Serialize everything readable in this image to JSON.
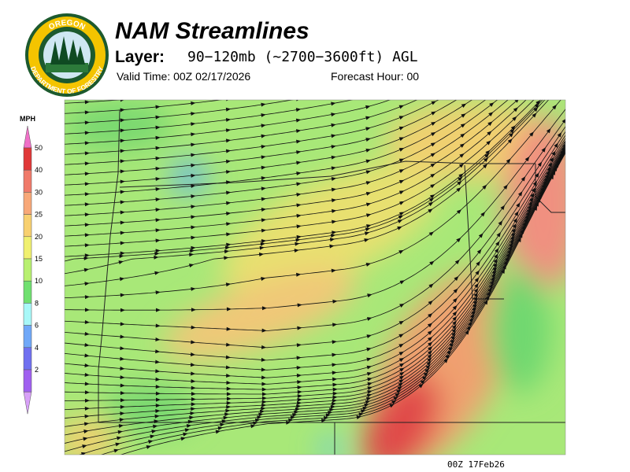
{
  "logo": {
    "top_text": "OREGON",
    "bottom_text": "DEPARTMENT OF FORESTRY"
  },
  "header": {
    "title": "NAM Streamlines",
    "layer_label": "Layer:",
    "layer_value": "90−120mb (~2700−3600ft) AGL",
    "valid_time": "Valid Time: 00Z 02/17/2026",
    "forecast_hour": "Forecast Hour: 00"
  },
  "legend": {
    "unit": "MPH",
    "levels": [
      {
        "label": "50",
        "color": "#e03838"
      },
      {
        "label": "40",
        "color": "#f07a6a"
      },
      {
        "label": "30",
        "color": "#f8a878"
      },
      {
        "label": "25",
        "color": "#f8d070"
      },
      {
        "label": "20",
        "color": "#f0f070"
      },
      {
        "label": "15",
        "color": "#b8f070"
      },
      {
        "label": "10",
        "color": "#70e070"
      },
      {
        "label": "8",
        "color": "#a8f8f8"
      },
      {
        "label": "6",
        "color": "#70a8f8"
      },
      {
        "label": "4",
        "color": "#7070f0"
      },
      {
        "label": "2",
        "color": "#a060f0"
      }
    ]
  },
  "footer": {
    "timestamp": "00Z 17Feb26"
  }
}
